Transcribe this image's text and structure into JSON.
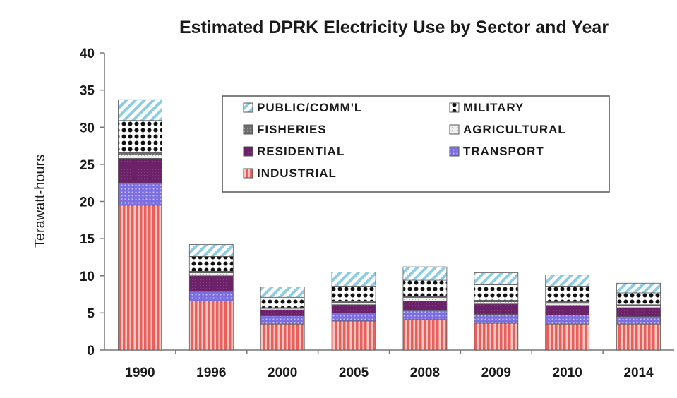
{
  "chart_data": {
    "type": "bar",
    "stacked": true,
    "title": "Estimated DPRK Electricity Use by Sector and Year",
    "xlabel": "",
    "ylabel": "Terawatt-hours",
    "ylim": [
      0,
      40
    ],
    "yticks": [
      0,
      5,
      10,
      15,
      20,
      25,
      30,
      35,
      40
    ],
    "grid": false,
    "legend_position": "top-right",
    "categories": [
      "1990",
      "1996",
      "2000",
      "2005",
      "2008",
      "2009",
      "2010",
      "2014"
    ],
    "series": [
      {
        "name": "INDUSTRIAL",
        "pattern": "vertical-stripes",
        "color": "#e8605c",
        "values": [
          19.5,
          6.6,
          3.5,
          3.9,
          4.1,
          3.6,
          3.5,
          3.5
        ]
      },
      {
        "name": "TRANSPORT",
        "pattern": "dots",
        "color": "#6a5ccf",
        "values": [
          3.0,
          1.3,
          1.1,
          1.1,
          1.2,
          1.2,
          1.2,
          1.0
        ]
      },
      {
        "name": "RESIDENTIAL",
        "pattern": "solid",
        "color": "#6b2268",
        "values": [
          3.3,
          2.1,
          0.8,
          1.1,
          1.3,
          1.4,
          1.3,
          1.2
        ]
      },
      {
        "name": "AGRICULTURAL",
        "pattern": "light",
        "color": "#d9d9d9",
        "values": [
          0.5,
          0.4,
          0.2,
          0.3,
          0.4,
          0.3,
          0.3,
          0.3
        ]
      },
      {
        "name": "FISHERIES",
        "pattern": "solid",
        "color": "#6f6f6f",
        "values": [
          0.3,
          0.2,
          0.1,
          0.2,
          0.2,
          0.2,
          0.2,
          0.1
        ]
      },
      {
        "name": "MILITARY",
        "pattern": "dots-on-dark",
        "color": "#111111",
        "values": [
          4.3,
          2.0,
          1.4,
          2.0,
          2.2,
          2.1,
          2.1,
          1.6
        ]
      },
      {
        "name": "PUBLIC/COMM'L",
        "pattern": "diagonal",
        "color": "#9ad3e6",
        "values": [
          2.8,
          1.6,
          1.4,
          1.9,
          1.8,
          1.6,
          1.5,
          1.3
        ]
      }
    ],
    "legend_order": [
      "PUBLIC/COMM'L",
      "MILITARY",
      "FISHERIES",
      "AGRICULTURAL",
      "RESIDENTIAL",
      "TRANSPORT",
      "INDUSTRIAL"
    ]
  }
}
